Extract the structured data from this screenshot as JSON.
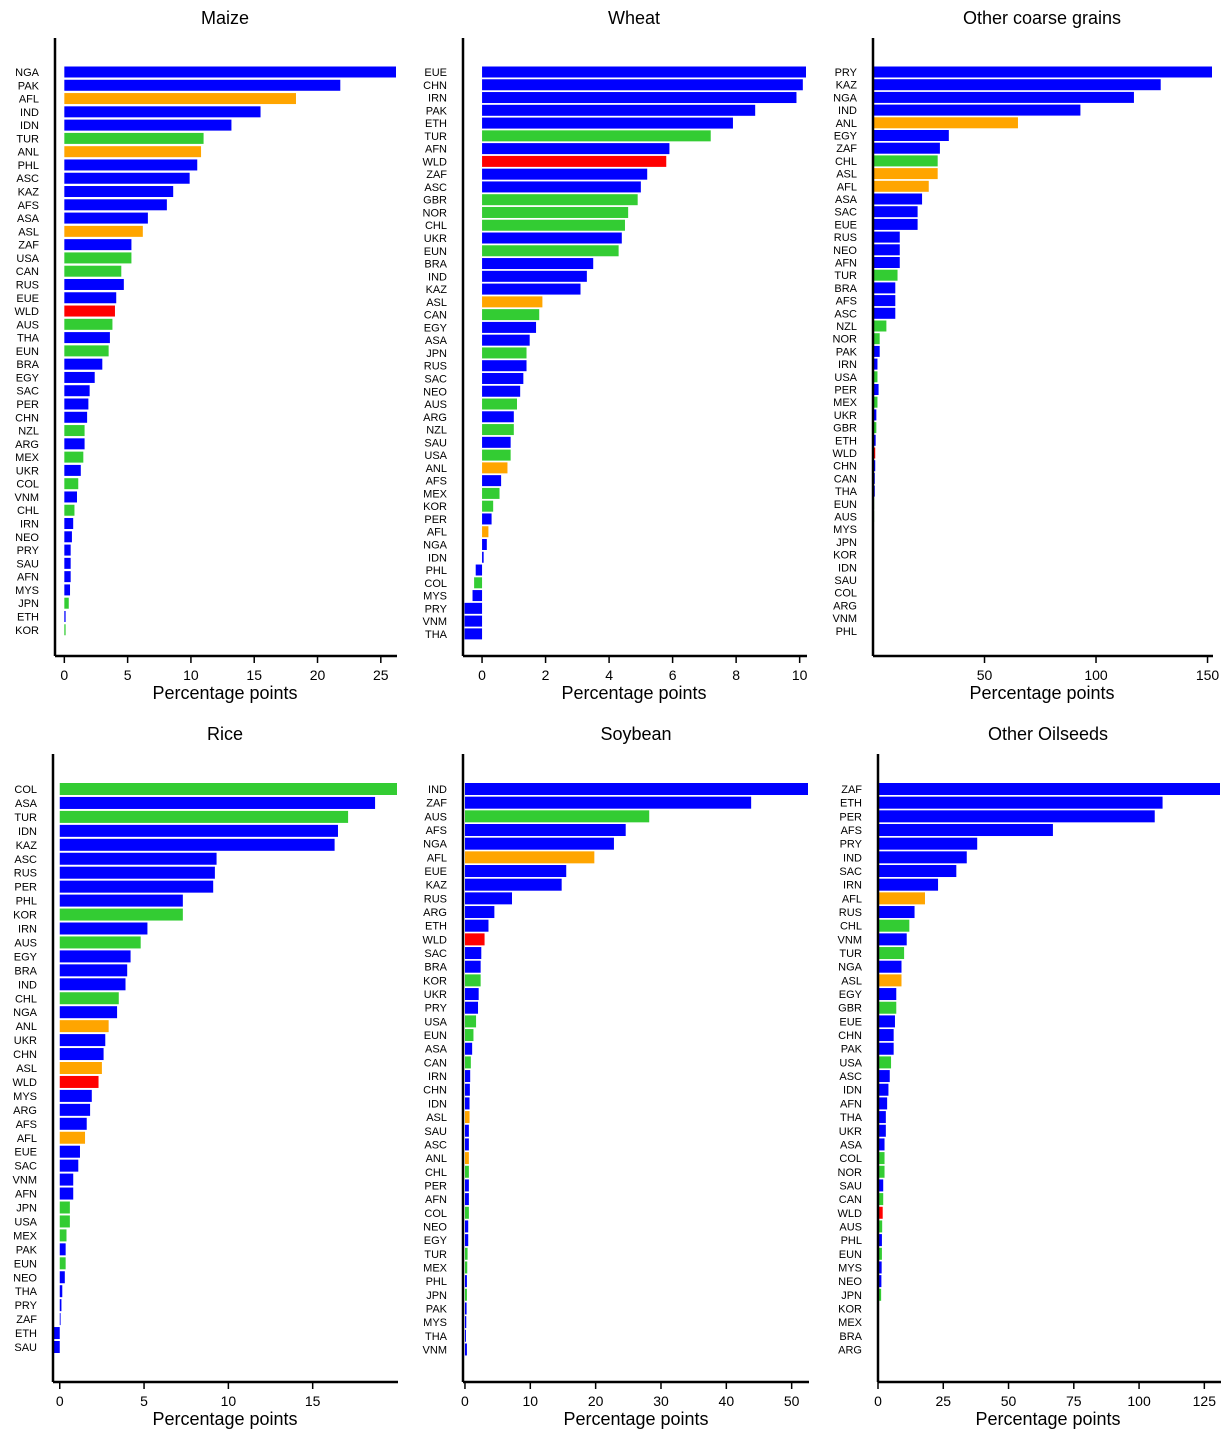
{
  "colors": {
    "blue": "#0000ff",
    "green": "#33cc33",
    "orange": "#ffa500",
    "red": "#ff0000"
  },
  "chart_data": [
    {
      "type": "bar",
      "orientation": "horizontal",
      "title": "Maize",
      "xlabel": "Percentage points",
      "xlim": [
        -0.5,
        26.2
      ],
      "xticks": [
        0,
        5,
        10,
        15,
        20,
        25
      ],
      "categories": [
        "NGA",
        "PAK",
        "AFL",
        "IND",
        "IDN",
        "TUR",
        "ANL",
        "PHL",
        "ASC",
        "KAZ",
        "AFS",
        "ASA",
        "ASL",
        "ZAF",
        "USA",
        "CAN",
        "RUS",
        "EUE",
        "WLD",
        "AUS",
        "THA",
        "EUN",
        "BRA",
        "EGY",
        "SAC",
        "PER",
        "CHN",
        "NZL",
        "ARG",
        "MEX",
        "UKR",
        "COL",
        "VNM",
        "CHL",
        "IRN",
        "NEO",
        "PRY",
        "SAU",
        "AFN",
        "MYS",
        "JPN",
        "ETH",
        "KOR"
      ],
      "values": [
        26.2,
        21.8,
        18.3,
        15.5,
        13.2,
        11.0,
        10.8,
        10.5,
        9.9,
        8.6,
        8.1,
        6.6,
        6.2,
        5.3,
        5.3,
        4.5,
        4.7,
        4.1,
        4.0,
        3.8,
        3.6,
        3.5,
        3.0,
        2.4,
        2.0,
        1.9,
        1.8,
        1.6,
        1.6,
        1.5,
        1.3,
        1.1,
        1.0,
        0.8,
        0.7,
        0.6,
        0.5,
        0.5,
        0.5,
        0.45,
        0.35,
        0.1,
        0.1
      ],
      "colors": [
        "blue",
        "blue",
        "orange",
        "blue",
        "blue",
        "green",
        "orange",
        "blue",
        "blue",
        "blue",
        "blue",
        "blue",
        "orange",
        "blue",
        "green",
        "green",
        "blue",
        "blue",
        "red",
        "green",
        "blue",
        "green",
        "blue",
        "blue",
        "blue",
        "blue",
        "blue",
        "green",
        "blue",
        "green",
        "blue",
        "green",
        "blue",
        "green",
        "blue",
        "blue",
        "blue",
        "blue",
        "blue",
        "blue",
        "green",
        "blue",
        "green"
      ]
    },
    {
      "type": "bar",
      "orientation": "horizontal",
      "title": "Wheat",
      "xlabel": "Percentage points",
      "xlim": [
        -0.6,
        10.2
      ],
      "xticks": [
        0,
        2,
        4,
        6,
        8,
        10
      ],
      "categories": [
        "EUE",
        "CHN",
        "IRN",
        "PAK",
        "ETH",
        "TUR",
        "AFN",
        "WLD",
        "ZAF",
        "ASC",
        "GBR",
        "NOR",
        "CHL",
        "UKR",
        "EUN",
        "BRA",
        "IND",
        "KAZ",
        "ASL",
        "CAN",
        "EGY",
        "ASA",
        "JPN",
        "RUS",
        "SAC",
        "NEO",
        "AUS",
        "ARG",
        "NZL",
        "SAU",
        "USA",
        "ANL",
        "AFS",
        "MEX",
        "KOR",
        "PER",
        "AFL",
        "NGA",
        "IDN",
        "PHL",
        "COL",
        "MYS",
        "PRY",
        "VNM",
        "THA"
      ],
      "values": [
        10.2,
        10.1,
        9.9,
        8.6,
        7.9,
        7.2,
        5.9,
        5.8,
        5.2,
        5.0,
        4.9,
        4.6,
        4.5,
        4.4,
        4.3,
        3.5,
        3.3,
        3.1,
        1.9,
        1.8,
        1.7,
        1.5,
        1.4,
        1.4,
        1.3,
        1.2,
        1.1,
        1.0,
        1.0,
        0.9,
        0.9,
        0.8,
        0.6,
        0.55,
        0.35,
        0.3,
        0.2,
        0.15,
        0.05,
        -0.2,
        -0.25,
        -0.3,
        -0.55,
        -0.55,
        -0.55
      ],
      "colors": [
        "blue",
        "blue",
        "blue",
        "blue",
        "blue",
        "green",
        "blue",
        "red",
        "blue",
        "blue",
        "green",
        "green",
        "green",
        "blue",
        "green",
        "blue",
        "blue",
        "blue",
        "orange",
        "green",
        "blue",
        "blue",
        "green",
        "blue",
        "blue",
        "blue",
        "green",
        "blue",
        "green",
        "blue",
        "green",
        "orange",
        "blue",
        "green",
        "green",
        "blue",
        "orange",
        "blue",
        "blue",
        "blue",
        "green",
        "blue",
        "blue",
        "blue",
        "blue"
      ]
    },
    {
      "type": "bar",
      "orientation": "horizontal",
      "title": "Other coarse grains",
      "xlabel": "Percentage points",
      "xlim": [
        0,
        152
      ],
      "xticks": [
        50,
        100,
        150
      ],
      "categories": [
        "PRY",
        "KAZ",
        "NGA",
        "IND",
        "ANL",
        "EGY",
        "ZAF",
        "CHL",
        "ASL",
        "AFL",
        "ASA",
        "SAC",
        "EUE",
        "RUS",
        "NEO",
        "AFN",
        "TUR",
        "BRA",
        "AFS",
        "ASC",
        "NZL",
        "NOR",
        "PAK",
        "IRN",
        "USA",
        "PER",
        "MEX",
        "UKR",
        "GBR",
        "ETH",
        "WLD",
        "CHN",
        "CAN",
        "THA",
        "EUN",
        "AUS",
        "MYS",
        "JPN",
        "KOR",
        "IDN",
        "SAU",
        "COL",
        "ARG",
        "VNM",
        "PHL"
      ],
      "values": [
        152,
        129,
        117,
        93,
        65,
        34,
        30,
        29,
        29,
        25,
        22,
        20,
        20,
        12,
        12,
        12,
        11,
        10,
        10,
        10,
        6,
        3,
        3,
        2,
        2,
        2.5,
        2,
        1.5,
        1.5,
        1.2,
        1,
        1,
        0.8,
        0.8,
        0.5,
        0.5,
        0.3,
        0.2,
        0.2,
        0.2,
        0.2,
        0.2,
        0.2,
        0.2,
        0.1
      ],
      "colors": [
        "blue",
        "blue",
        "blue",
        "blue",
        "orange",
        "blue",
        "blue",
        "green",
        "orange",
        "orange",
        "blue",
        "blue",
        "blue",
        "blue",
        "blue",
        "blue",
        "green",
        "blue",
        "blue",
        "blue",
        "green",
        "green",
        "blue",
        "blue",
        "green",
        "blue",
        "green",
        "blue",
        "green",
        "blue",
        "red",
        "blue",
        "blue",
        "blue",
        "green",
        "green",
        "blue",
        "green",
        "blue",
        "blue",
        "blue",
        "blue",
        "blue",
        "blue",
        "blue"
      ]
    },
    {
      "type": "bar",
      "orientation": "horizontal",
      "title": "Rice",
      "xlabel": "Percentage points",
      "xlim": [
        -0.4,
        20
      ],
      "xticks": [
        0,
        5,
        10,
        15
      ],
      "categories": [
        "COL",
        "ASA",
        "TUR",
        "IDN",
        "KAZ",
        "ASC",
        "RUS",
        "PER",
        "PHL",
        "KOR",
        "IRN",
        "AUS",
        "EGY",
        "BRA",
        "IND",
        "CHL",
        "NGA",
        "ANL",
        "UKR",
        "CHN",
        "ASL",
        "WLD",
        "MYS",
        "ARG",
        "AFS",
        "AFL",
        "EUE",
        "SAC",
        "VNM",
        "AFN",
        "JPN",
        "USA",
        "MEX",
        "PAK",
        "EUN",
        "NEO",
        "THA",
        "PRY",
        "ZAF",
        "ETH",
        "SAU"
      ],
      "values": [
        20,
        18.7,
        17.1,
        16.5,
        16.3,
        9.3,
        9.2,
        9.1,
        7.3,
        7.3,
        5.2,
        4.8,
        4.2,
        4.0,
        3.9,
        3.5,
        3.4,
        2.9,
        2.7,
        2.6,
        2.5,
        2.3,
        1.9,
        1.8,
        1.6,
        1.5,
        1.2,
        1.1,
        0.8,
        0.8,
        0.6,
        0.6,
        0.4,
        0.35,
        0.35,
        0.3,
        0.15,
        0.1,
        0.05,
        -0.35,
        -0.4
      ],
      "colors": [
        "green",
        "blue",
        "green",
        "blue",
        "blue",
        "blue",
        "blue",
        "blue",
        "blue",
        "green",
        "blue",
        "green",
        "blue",
        "blue",
        "blue",
        "green",
        "blue",
        "orange",
        "blue",
        "blue",
        "orange",
        "red",
        "blue",
        "blue",
        "blue",
        "orange",
        "blue",
        "blue",
        "blue",
        "blue",
        "green",
        "green",
        "green",
        "blue",
        "green",
        "blue",
        "blue",
        "blue",
        "blue",
        "blue",
        "blue"
      ]
    },
    {
      "type": "bar",
      "orientation": "horizontal",
      "title": "Soybean",
      "xlabel": "Percentage points",
      "xlim": [
        -0.3,
        52.5
      ],
      "xticks": [
        0,
        10,
        20,
        30,
        40,
        50
      ],
      "categories": [
        "IND",
        "ZAF",
        "AUS",
        "AFS",
        "NGA",
        "AFL",
        "EUE",
        "KAZ",
        "RUS",
        "ARG",
        "ETH",
        "WLD",
        "SAC",
        "BRA",
        "KOR",
        "UKR",
        "PRY",
        "USA",
        "EUN",
        "ASA",
        "CAN",
        "IRN",
        "CHN",
        "IDN",
        "ASL",
        "SAU",
        "ASC",
        "ANL",
        "CHL",
        "PER",
        "AFN",
        "COL",
        "NEO",
        "EGY",
        "TUR",
        "MEX",
        "PHL",
        "JPN",
        "PAK",
        "MYS",
        "THA",
        "VNM"
      ],
      "values": [
        52.5,
        43.8,
        28.2,
        24.6,
        22.8,
        19.8,
        15.5,
        14.8,
        7.2,
        4.5,
        3.6,
        3.0,
        2.5,
        2.4,
        2.4,
        2.1,
        2.0,
        1.7,
        1.3,
        1.1,
        0.9,
        0.8,
        0.75,
        0.7,
        0.7,
        0.6,
        0.6,
        0.6,
        0.6,
        0.6,
        0.6,
        0.6,
        0.5,
        0.5,
        0.4,
        0.35,
        0.3,
        0.3,
        0.25,
        0.2,
        0.15,
        0.3
      ],
      "colors": [
        "blue",
        "blue",
        "green",
        "blue",
        "blue",
        "orange",
        "blue",
        "blue",
        "blue",
        "blue",
        "blue",
        "red",
        "blue",
        "blue",
        "green",
        "blue",
        "blue",
        "green",
        "green",
        "blue",
        "green",
        "blue",
        "blue",
        "blue",
        "orange",
        "blue",
        "blue",
        "orange",
        "green",
        "blue",
        "blue",
        "green",
        "blue",
        "blue",
        "green",
        "green",
        "blue",
        "green",
        "blue",
        "blue",
        "blue",
        "blue"
      ]
    },
    {
      "type": "bar",
      "orientation": "horizontal",
      "title": "Other Oilseeds",
      "xlabel": "Percentage points",
      "xlim": [
        0,
        131
      ],
      "xticks": [
        0,
        25,
        50,
        75,
        100,
        125
      ],
      "categories": [
        "ZAF",
        "ETH",
        "PER",
        "AFS",
        "PRY",
        "IND",
        "SAC",
        "IRN",
        "AFL",
        "RUS",
        "CHL",
        "VNM",
        "TUR",
        "NGA",
        "ASL",
        "EGY",
        "GBR",
        "EUE",
        "CHN",
        "PAK",
        "USA",
        "ASC",
        "IDN",
        "AFN",
        "THA",
        "UKR",
        "ASA",
        "COL",
        "NOR",
        "SAU",
        "CAN",
        "WLD",
        "AUS",
        "PHL",
        "EUN",
        "MYS",
        "NEO",
        "JPN",
        "KOR",
        "MEX",
        "BRA",
        "ARG"
      ],
      "values": [
        131,
        109,
        106,
        67,
        38,
        34,
        30,
        23,
        18,
        14,
        12,
        11,
        10,
        9,
        9,
        7,
        7,
        6.5,
        6,
        6,
        5,
        4.5,
        4,
        3.5,
        3,
        3,
        2.5,
        2.5,
        2.5,
        2,
        2,
        1.8,
        1.6,
        1.5,
        1.5,
        1.4,
        1.3,
        1.2,
        0.3,
        0.2,
        0.2,
        0.1
      ],
      "colors": [
        "blue",
        "blue",
        "blue",
        "blue",
        "blue",
        "blue",
        "blue",
        "blue",
        "orange",
        "blue",
        "green",
        "blue",
        "green",
        "blue",
        "orange",
        "blue",
        "green",
        "blue",
        "blue",
        "blue",
        "green",
        "blue",
        "blue",
        "blue",
        "blue",
        "blue",
        "blue",
        "green",
        "green",
        "blue",
        "green",
        "red",
        "green",
        "blue",
        "green",
        "blue",
        "blue",
        "green",
        "blue",
        "blue",
        "blue",
        "blue"
      ]
    }
  ]
}
